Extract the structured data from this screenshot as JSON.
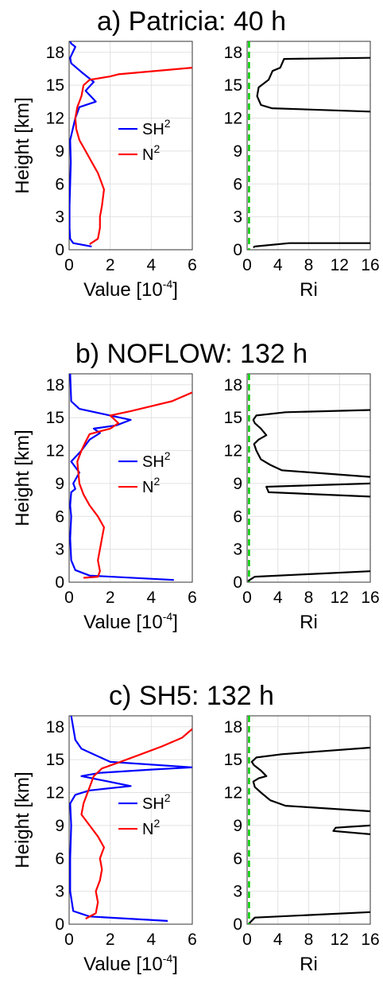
{
  "chart_data": [
    {
      "panel": "a",
      "title": "a) Patricia: 40 h",
      "left": {
        "type": "line",
        "xlabel": "Value [10",
        "xlabel_sup": "-4",
        "xlabel_end": "]",
        "ylabel": "Height [km]",
        "xlim": [
          0,
          6
        ],
        "ylim": [
          0,
          19
        ],
        "xticks": [
          "0",
          "2",
          "4",
          "6"
        ],
        "yticks": [
          "0",
          "3",
          "6",
          "9",
          "12",
          "15",
          "18"
        ],
        "legend": {
          "position": "center-right",
          "entries": [
            {
              "label": "SH",
              "sup": "2"
            },
            {
              "label": "N",
              "sup": "2"
            }
          ]
        },
        "series": [
          {
            "color": "#0000ff",
            "x": [
              1.1,
              0.2,
              0.05,
              0.02,
              0.02,
              0.05,
              0.08,
              0.05,
              0.3,
              0.5,
              1.3,
              0.8,
              1.2,
              0.6,
              0.1,
              0.05,
              0.3,
              0.1,
              0.05
            ],
            "y": [
              0.3,
              0.6,
              1.0,
              2,
              4,
              6,
              8,
              10,
              12,
              13,
              13.5,
              14.5,
              15.3,
              16.2,
              17,
              17.5,
              18.5,
              18.8,
              19
            ]
          },
          {
            "color": "#ff0000",
            "x": [
              1.0,
              1.4,
              1.5,
              1.5,
              1.6,
              1.7,
              1.4,
              1.1,
              0.8,
              0.5,
              0.35,
              0.3,
              0.4,
              0.6,
              0.7,
              1.0,
              2.0,
              2.4,
              6.0
            ],
            "y": [
              0.5,
              1.0,
              2,
              3,
              4,
              5.5,
              7,
              8,
              9,
              10,
              11,
              12,
              13,
              14,
              15,
              15.5,
              15.8,
              16,
              16.6
            ]
          }
        ]
      },
      "right": {
        "type": "line",
        "xlabel": "Ri",
        "xlim": [
          0,
          16
        ],
        "ylim": [
          0,
          19
        ],
        "xticks": [
          "0",
          "4",
          "8",
          "12",
          "16"
        ],
        "yticks": [
          "0",
          "3",
          "6",
          "9",
          "12",
          "15",
          "18"
        ],
        "threshold": {
          "x": 0.25,
          "color": "#00cc00"
        },
        "series": [
          {
            "color": "#000000",
            "x": [
              0.8,
              1.0,
              5.5,
              16
            ],
            "y": [
              0.2,
              0.3,
              0.6,
              0.6
            ]
          },
          {
            "color": "#000000",
            "x": [
              16,
              3.2,
              1.8,
              1.3,
              1.5,
              2.8,
              3.3,
              4.3,
              4.8,
              16
            ],
            "y": [
              12.6,
              12.9,
              13.2,
              14,
              14.8,
              15.5,
              16.3,
              16.6,
              17.4,
              17.5
            ]
          }
        ]
      }
    },
    {
      "panel": "b",
      "title": "b) NOFLOW: 132 h",
      "left": {
        "type": "line",
        "xlabel": "Value [10",
        "xlabel_sup": "-4",
        "xlabel_end": "]",
        "ylabel": "Height [km]",
        "xlim": [
          0,
          6
        ],
        "ylim": [
          0,
          19
        ],
        "xticks": [
          "0",
          "2",
          "4",
          "6"
        ],
        "yticks": [
          "0",
          "3",
          "6",
          "9",
          "12",
          "15",
          "18"
        ],
        "legend": {
          "position": "center-right",
          "entries": [
            {
              "label": "SH",
              "sup": "2"
            },
            {
              "label": "N",
              "sup": "2"
            }
          ]
        },
        "series": [
          {
            "color": "#0000ff",
            "x": [
              5.1,
              1.0,
              0.3,
              0.1,
              0.05,
              0.1,
              0.05,
              0.1,
              0.3,
              0.2,
              0.5,
              0.1,
              0.6,
              1.0,
              1.5,
              1.2,
              2.3,
              3.0,
              2.0,
              0.5,
              0.1,
              0.05
            ],
            "y": [
              0.2,
              0.6,
              1.1,
              2,
              4,
              6,
              7,
              8.2,
              8.5,
              9,
              10,
              11,
              12,
              13,
              13.6,
              14,
              14.3,
              14.8,
              15.2,
              15.8,
              16.5,
              19
            ]
          },
          {
            "color": "#ff0000",
            "x": [
              0.7,
              1.4,
              1.5,
              1.4,
              1.5,
              1.6,
              1.7,
              1.4,
              1.0,
              0.7,
              0.5,
              0.4,
              0.6,
              0.8,
              1.0,
              2.0,
              2.4,
              2.0,
              3.0,
              5.0,
              6.0
            ],
            "y": [
              0.4,
              0.5,
              1.0,
              2,
              3,
              4,
              5,
              6,
              7,
              8,
              9,
              11,
              12,
              12.8,
              13.5,
              14,
              14.5,
              15.2,
              15.6,
              16.5,
              17.3
            ]
          }
        ]
      },
      "right": {
        "type": "line",
        "xlabel": "Ri",
        "xlim": [
          0,
          16
        ],
        "ylim": [
          0,
          19
        ],
        "xticks": [
          "0",
          "4",
          "8",
          "12",
          "16"
        ],
        "yticks": [
          "0",
          "3",
          "6",
          "9",
          "12",
          "15",
          "18"
        ],
        "threshold": {
          "x": 0.25,
          "color": "#00cc00"
        },
        "series": [
          {
            "color": "#000000",
            "x": [
              0.1,
              1.0,
              16
            ],
            "y": [
              0.1,
              0.5,
              1.0
            ]
          },
          {
            "color": "#000000",
            "x": [
              16,
              2.8,
              2.5,
              16
            ],
            "y": [
              7.8,
              8.2,
              8.7,
              9.0
            ]
          },
          {
            "color": "#000000",
            "x": [
              16,
              4.5,
              3.0,
              1.8,
              1.2,
              0.9,
              1.5,
              2.5,
              1.8,
              1.0,
              0.8,
              1.2,
              5.0,
              16
            ],
            "y": [
              9.6,
              10.2,
              10.7,
              11.2,
              12,
              12.6,
              13,
              13.4,
              14,
              14.5,
              14.8,
              15.2,
              15.5,
              15.7
            ]
          }
        ]
      }
    },
    {
      "panel": "c",
      "title": "c) SH5: 132 h",
      "left": {
        "type": "line",
        "xlabel": "Value [10",
        "xlabel_sup": "-4",
        "xlabel_end": "]",
        "ylabel": "Height [km]",
        "xlim": [
          0,
          6
        ],
        "ylim": [
          0,
          19
        ],
        "xticks": [
          "0",
          "2",
          "4",
          "6"
        ],
        "yticks": [
          "0",
          "3",
          "6",
          "9",
          "12",
          "15",
          "18"
        ],
        "legend": {
          "position": "center-right",
          "entries": [
            {
              "label": "SH",
              "sup": "2"
            },
            {
              "label": "N",
              "sup": "2"
            }
          ]
        },
        "series": [
          {
            "color": "#0000ff",
            "x": [
              4.8,
              1.0,
              0.2,
              0.05,
              0.05,
              0.1,
              0.05,
              0.3,
              1.0,
              3.0,
              0.6,
              1.5,
              4.0,
              6.0,
              2.0,
              0.6,
              0.3,
              0.1
            ],
            "y": [
              0.3,
              0.7,
              1.2,
              3,
              6,
              9,
              11,
              11.8,
              12.2,
              12.6,
              13.5,
              13.8,
              14.1,
              14.3,
              14.8,
              16,
              16.8,
              19
            ]
          },
          {
            "color": "#ff0000",
            "x": [
              0.8,
              1.3,
              1.4,
              1.3,
              1.5,
              1.6,
              1.5,
              1.7,
              1.4,
              1.0,
              0.6,
              0.7,
              1.0,
              1.2,
              1.6,
              2.5,
              3.5,
              4.5,
              5.5,
              6.0
            ],
            "y": [
              0.5,
              1.0,
              2,
              3,
              4,
              5,
              6,
              7,
              8,
              9,
              10,
              11,
              12.5,
              13.5,
              14.2,
              14.8,
              15.5,
              16.2,
              17,
              17.8
            ]
          }
        ]
      },
      "right": {
        "type": "line",
        "xlabel": "Ri",
        "xlim": [
          0,
          16
        ],
        "ylim": [
          0,
          19
        ],
        "xticks": [
          "0",
          "4",
          "8",
          "12",
          "16"
        ],
        "yticks": [
          "0",
          "3",
          "6",
          "9",
          "12",
          "15",
          "18"
        ],
        "threshold": {
          "x": 0.25,
          "color": "#00cc00"
        },
        "series": [
          {
            "color": "#000000",
            "x": [
              0.3,
              1.0,
              16
            ],
            "y": [
              0.1,
              0.6,
              1.1
            ]
          },
          {
            "color": "#000000",
            "x": [
              16,
              11.2,
              11.5,
              16
            ],
            "y": [
              8.2,
              8.5,
              8.8,
              9.0
            ]
          },
          {
            "color": "#000000",
            "x": [
              16,
              5.0,
              3.0,
              1.8,
              1.0,
              0.8,
              1.5,
              2.5,
              1.8,
              0.9,
              0.6,
              1.2,
              4.5,
              16
            ],
            "y": [
              10.3,
              10.8,
              11.3,
              12,
              12.5,
              13,
              13.3,
              13.5,
              14,
              14.5,
              14.8,
              15.2,
              15.5,
              16.1
            ]
          }
        ]
      }
    }
  ]
}
